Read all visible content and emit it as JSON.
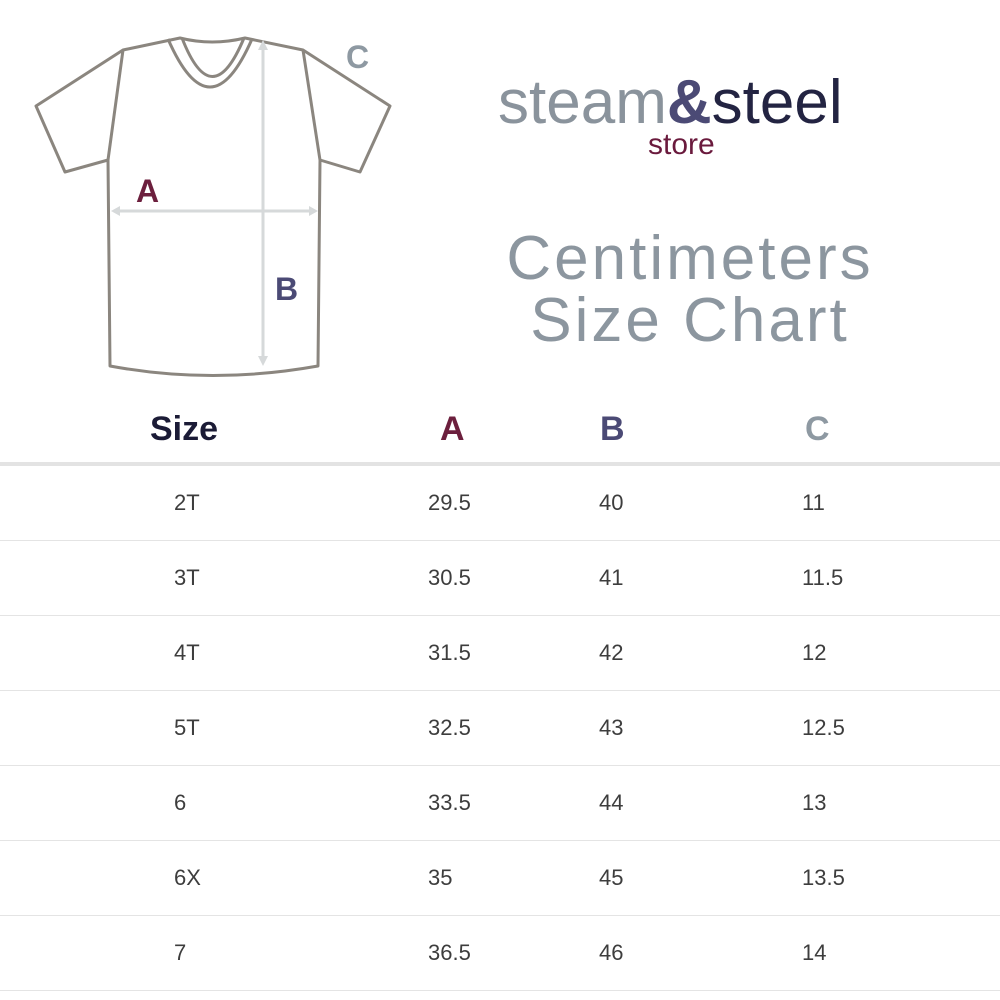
{
  "diagram": {
    "label_a": "A",
    "label_b": "B",
    "label_c": "C",
    "colors": {
      "a": "#6c1f3d",
      "b": "#4b4a75",
      "c": "#8e99a2",
      "outline": "#8b867f",
      "measure": "#d6d9da"
    }
  },
  "logo": {
    "steam": "steam",
    "amp": "&",
    "steel": "steel",
    "store": "store"
  },
  "title": {
    "line1": "Centimeters",
    "line2": "Size Chart"
  },
  "table": {
    "headers": {
      "size": "Size",
      "a": "A",
      "b": "B",
      "c": "C"
    },
    "rows": [
      {
        "size": "2T",
        "a": "29.5",
        "b": "40",
        "c": "11"
      },
      {
        "size": "3T",
        "a": "30.5",
        "b": "41",
        "c": "11.5"
      },
      {
        "size": "4T",
        "a": "31.5",
        "b": "42",
        "c": "12"
      },
      {
        "size": "5T",
        "a": "32.5",
        "b": "43",
        "c": "12.5"
      },
      {
        "size": "6",
        "a": "33.5",
        "b": "44",
        "c": "13"
      },
      {
        "size": "6X",
        "a": "35",
        "b": "45",
        "c": "13.5"
      },
      {
        "size": "7",
        "a": "36.5",
        "b": "46",
        "c": "14"
      }
    ]
  }
}
